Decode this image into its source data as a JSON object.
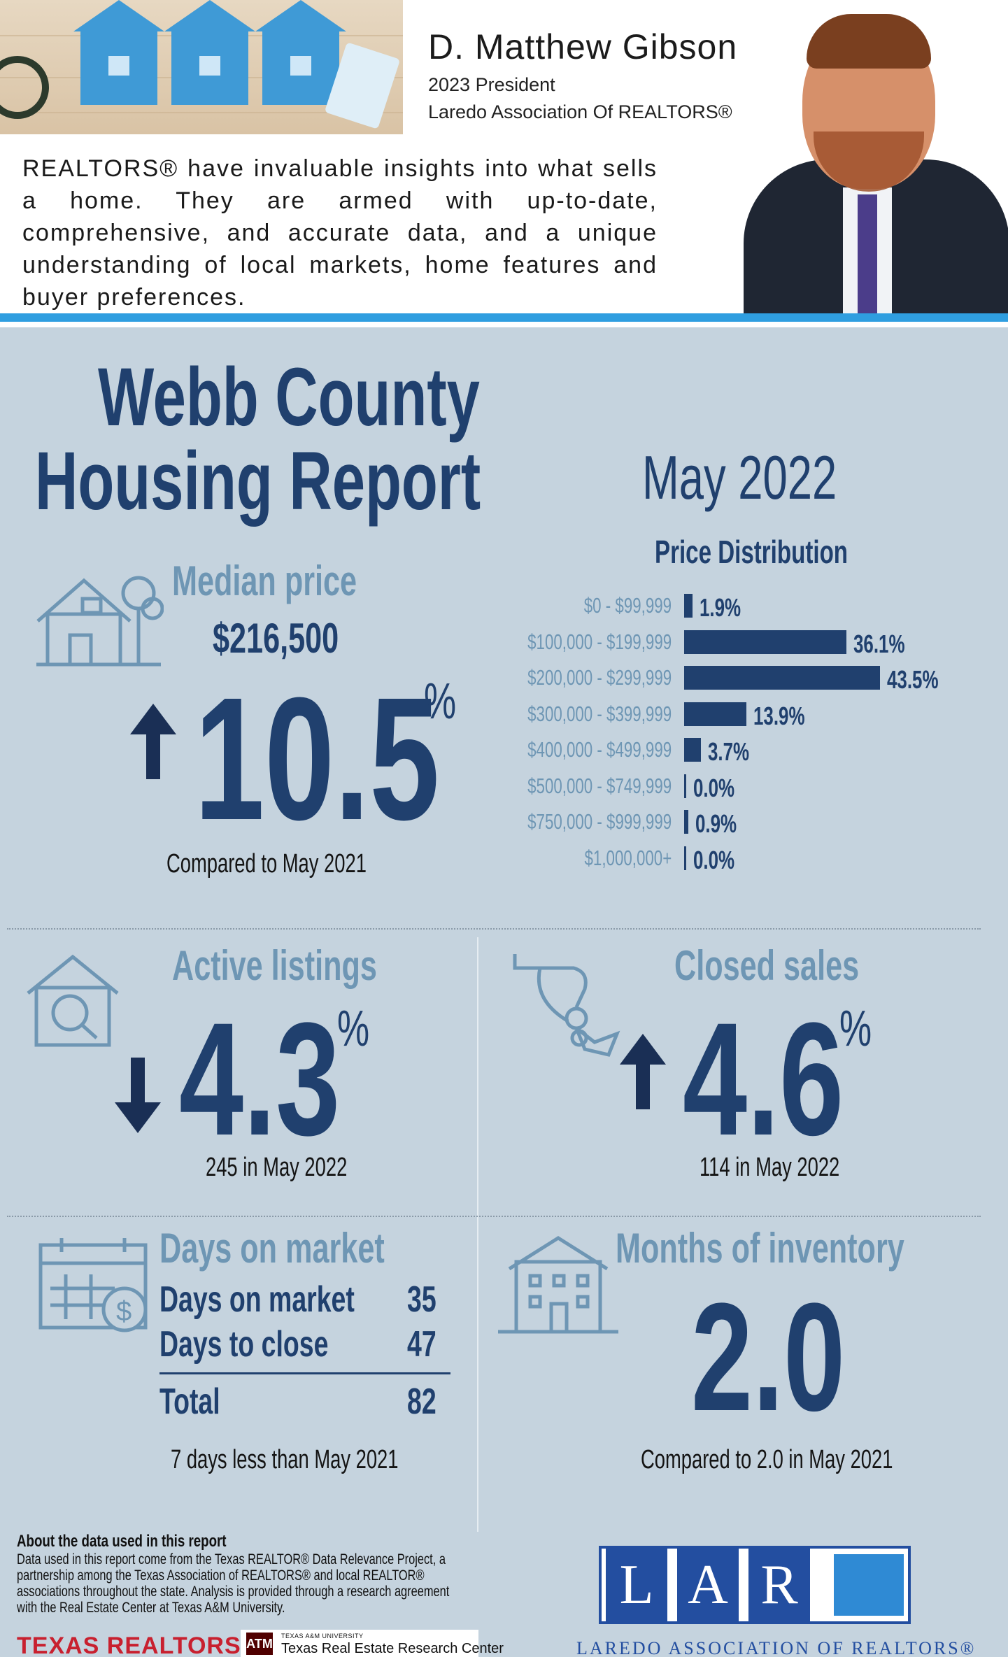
{
  "header": {
    "name": "D. Matthew Gibson",
    "title": "2023 President",
    "organization": "Laredo Association Of REALTORS®",
    "intro": "REALTORS® have invaluable insights into what sells a home. They are armed with up-to-date, comprehensive, and accurate data, and a unique understanding of local markets, home features and buyer preferences."
  },
  "report": {
    "title_line1": "Webb County",
    "title_line2": "Housing Report",
    "month": "May 2022"
  },
  "median_price": {
    "label": "Median price",
    "value": "$216,500",
    "change": "10.5",
    "unit": "%",
    "direction": "up",
    "comparison": "Compared to May 2021"
  },
  "price_distribution": {
    "title": "Price Distribution",
    "rows": [
      {
        "range": "$0 - $99,999",
        "value": "1.9%",
        "pct": 1.9
      },
      {
        "range": "$100,000 - $199,999",
        "value": "36.1%",
        "pct": 36.1
      },
      {
        "range": "$200,000 - $299,999",
        "value": "43.5%",
        "pct": 43.5
      },
      {
        "range": "$300,000 - $399,999",
        "value": "13.9%",
        "pct": 13.9
      },
      {
        "range": "$400,000 - $499,999",
        "value": "3.7%",
        "pct": 3.7
      },
      {
        "range": "$500,000 - $749,999",
        "value": "0.0%",
        "pct": 0.0
      },
      {
        "range": "$750,000 - $999,999",
        "value": "0.9%",
        "pct": 0.9
      },
      {
        "range": "$1,000,000+",
        "value": "0.0%",
        "pct": 0.0
      }
    ]
  },
  "active_listings": {
    "label": "Active listings",
    "change": "4.3",
    "unit": "%",
    "direction": "down",
    "detail": "245 in May 2022"
  },
  "closed_sales": {
    "label": "Closed sales",
    "change": "4.6",
    "unit": "%",
    "direction": "up",
    "detail": "114 in May 2022"
  },
  "days_on_market": {
    "label": "Days on market",
    "rows": [
      {
        "label": "Days on market",
        "value": "35"
      },
      {
        "label": "Days to close",
        "value": "47"
      }
    ],
    "total_label": "Total",
    "total_value": "82",
    "comparison": "7 days less than May 2021"
  },
  "months_inventory": {
    "label": "Months of inventory",
    "value": "2.0",
    "comparison": "Compared to 2.0 in May 2021"
  },
  "about": {
    "heading": "About the data used in this report",
    "text": "Data used in this report come from the Texas REALTOR® Data Relevance Project, a partnership among the Texas Association of REALTORS® and local REALTOR® associations throughout the state. Analysis is provided through a research agreement with the Real Estate Center at Texas A&M University."
  },
  "logos": {
    "texas_realtors": "TEXAS REALTORS",
    "tamu_small": "TEXAS A&M UNIVERSITY",
    "tamu_big": "Texas Real Estate Research Center",
    "lar_letters": [
      "L",
      "A",
      "R"
    ],
    "lar_name": "LAREDO ASSOCIATION OF REALTORS®"
  },
  "colors": {
    "navy": "#20406e",
    "light_blue_text": "#6e96b4",
    "panel_bg": "#c5d3de",
    "accent_strip": "#2f9ee0"
  }
}
